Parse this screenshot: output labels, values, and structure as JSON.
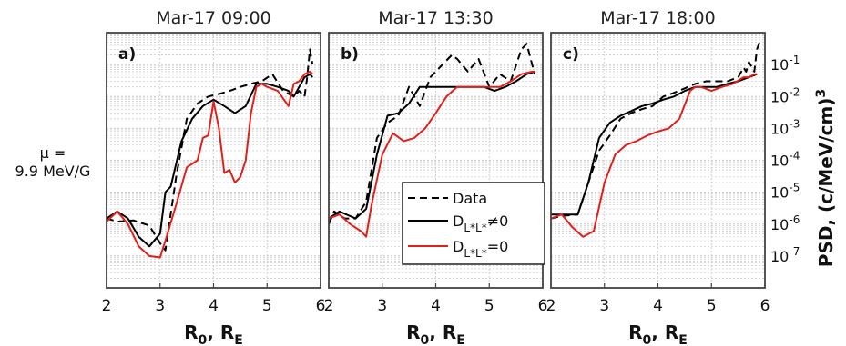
{
  "left_label": {
    "mu_line1": "μ =",
    "mu_line2": "9.9 MeV/G"
  },
  "x_axis": {
    "label_main": "R",
    "label_sub": "0",
    "label_rest": ", R",
    "label_sub2": "E",
    "ticks": [
      "2",
      "3",
      "4",
      "5",
      "6"
    ],
    "range": [
      2,
      6
    ]
  },
  "y_axis": {
    "label_main": "PSD, (c/MeV/cm)",
    "label_sup": "3",
    "scale": "log",
    "range": [
      1e-08,
      1.0
    ],
    "ticks": [
      {
        "base": "10",
        "exp": "-1"
      },
      {
        "base": "10",
        "exp": "-2"
      },
      {
        "base": "10",
        "exp": "-3"
      },
      {
        "base": "10",
        "exp": "-4"
      },
      {
        "base": "10",
        "exp": "-5"
      },
      {
        "base": "10",
        "exp": "-6"
      },
      {
        "base": "10",
        "exp": "-7"
      }
    ]
  },
  "legend": {
    "items": [
      {
        "label": "Data",
        "sub": "",
        "tail": "",
        "color": "#000000",
        "dash": true
      },
      {
        "label": "D",
        "sub": "L*L*",
        "tail": "≠0",
        "color": "#000000",
        "dash": false
      },
      {
        "label": "D",
        "sub": "L*L*",
        "tail": "=0",
        "color": "#e0201b",
        "dash": false
      }
    ]
  },
  "panels": [
    {
      "title": "Mar-17 09:00",
      "letter": "a)"
    },
    {
      "title": "Mar-17 13:30",
      "letter": "b)"
    },
    {
      "title": "Mar-17 18:00",
      "letter": "c)"
    }
  ],
  "colors": {
    "data": "#000000",
    "model_nonzero": "#000000",
    "model_zero": "#e0201b",
    "grid": "#cfcfcf"
  },
  "chart_data": [
    {
      "type": "line",
      "title": "Mar-17 09:00",
      "xlim": [
        2,
        6
      ],
      "ylim": [
        1e-08,
        1
      ],
      "yscale": "log",
      "grid": true,
      "series": [
        {
          "name": "Data",
          "style": "dashed",
          "x": [
            2.0,
            2.2,
            2.5,
            2.8,
            3.0,
            3.1,
            3.3,
            3.5,
            3.7,
            3.9,
            4.1,
            4.3,
            4.5,
            4.7,
            4.9,
            5.1,
            5.3,
            5.5,
            5.6,
            5.7,
            5.75,
            5.8,
            5.85
          ],
          "y": [
            1.5e-06,
            1.2e-06,
            1.3e-06,
            9e-07,
            2.5e-07,
            1.5e-07,
            3e-05,
            0.002,
            0.006,
            0.01,
            0.012,
            0.015,
            0.02,
            0.025,
            0.03,
            0.05,
            0.015,
            0.01,
            0.015,
            0.01,
            0.04,
            0.3,
            0.1
          ]
        },
        {
          "name": "D L*L* ≠0",
          "style": "solid",
          "x": [
            2.0,
            2.2,
            2.4,
            2.6,
            2.8,
            3.0,
            3.1,
            3.2,
            3.4,
            3.6,
            3.8,
            4.0,
            4.2,
            4.4,
            4.6,
            4.8,
            5.0,
            5.2,
            5.4,
            5.5,
            5.6,
            5.7,
            5.8,
            5.85
          ],
          "y": [
            1.5e-06,
            2.5e-06,
            1.5e-06,
            4e-07,
            2e-07,
            5e-07,
            1e-05,
            1.5e-05,
            0.0004,
            0.002,
            0.005,
            0.008,
            0.005,
            0.003,
            0.005,
            0.025,
            0.025,
            0.02,
            0.015,
            0.01,
            0.02,
            0.04,
            0.05,
            0.04
          ]
        },
        {
          "name": "D L*L* =0",
          "style": "solid",
          "x": [
            2.0,
            2.2,
            2.4,
            2.6,
            2.8,
            3.0,
            3.1,
            3.3,
            3.5,
            3.7,
            3.8,
            3.9,
            4.0,
            4.1,
            4.2,
            4.3,
            4.4,
            4.5,
            4.6,
            4.7,
            4.8,
            4.9,
            5.0,
            5.2,
            5.4,
            5.5,
            5.6,
            5.7,
            5.8,
            5.85
          ],
          "y": [
            1.2e-06,
            2.5e-06,
            1e-06,
            2e-07,
            1e-07,
            9e-08,
            3e-07,
            4e-06,
            6e-05,
            0.0001,
            0.0005,
            0.0006,
            0.007,
            0.001,
            4e-05,
            5e-05,
            2e-05,
            3e-05,
            0.0001,
            0.003,
            0.02,
            0.025,
            0.02,
            0.015,
            0.005,
            0.025,
            0.03,
            0.05,
            0.06,
            0.05
          ]
        }
      ]
    },
    {
      "type": "line",
      "title": "Mar-17 13:30",
      "xlim": [
        2,
        6
      ],
      "ylim": [
        1e-08,
        1
      ],
      "yscale": "log",
      "grid": true,
      "series": [
        {
          "name": "Data",
          "style": "dashed",
          "x": [
            2.0,
            2.1,
            2.3,
            2.5,
            2.7,
            2.9,
            3.1,
            3.3,
            3.5,
            3.7,
            3.9,
            4.1,
            4.3,
            4.4,
            4.6,
            4.8,
            5.0,
            5.2,
            5.4,
            5.6,
            5.7,
            5.8,
            5.85
          ],
          "y": [
            1e-06,
            2.5e-06,
            1.5e-06,
            1.5e-06,
            5e-06,
            0.0005,
            0.0015,
            0.0025,
            0.02,
            0.005,
            0.04,
            0.09,
            0.2,
            0.15,
            0.06,
            0.15,
            0.02,
            0.05,
            0.03,
            0.3,
            0.45,
            0.1,
            0.05
          ]
        },
        {
          "name": "D L*L* ≠0",
          "style": "solid",
          "x": [
            2.0,
            2.2,
            2.5,
            2.7,
            2.9,
            3.1,
            3.3,
            3.5,
            3.7,
            3.9,
            4.1,
            4.3,
            4.5,
            4.7,
            4.9,
            5.1,
            5.3,
            5.5,
            5.7,
            5.85
          ],
          "y": [
            1.5e-06,
            2.5e-06,
            1.5e-06,
            3e-06,
            0.00015,
            0.0025,
            0.003,
            0.006,
            0.02,
            0.02,
            0.02,
            0.02,
            0.02,
            0.02,
            0.02,
            0.015,
            0.02,
            0.03,
            0.05,
            0.06
          ]
        },
        {
          "name": "D L*L* =0",
          "style": "solid",
          "x": [
            2.0,
            2.2,
            2.4,
            2.6,
            2.7,
            2.8,
            3.0,
            3.2,
            3.4,
            3.6,
            3.8,
            4.0,
            4.2,
            4.4,
            4.6,
            4.8,
            5.0,
            5.2,
            5.4,
            5.6,
            5.8,
            5.85
          ],
          "y": [
            1.5e-06,
            2e-06,
            1e-06,
            6e-07,
            4e-07,
            4e-06,
            0.00015,
            0.0007,
            0.0004,
            0.0005,
            0.001,
            0.003,
            0.01,
            0.02,
            0.02,
            0.02,
            0.02,
            0.02,
            0.03,
            0.05,
            0.06,
            0.06
          ]
        }
      ]
    },
    {
      "type": "line",
      "title": "Mar-17 18:00",
      "xlim": [
        2,
        6
      ],
      "ylim": [
        1e-08,
        1
      ],
      "yscale": "log",
      "grid": true,
      "series": [
        {
          "name": "Data",
          "style": "dashed",
          "x": [
            2.0,
            2.2,
            2.5,
            2.7,
            2.9,
            3.1,
            3.3,
            3.5,
            3.7,
            3.9,
            4.1,
            4.3,
            4.5,
            4.7,
            4.9,
            5.1,
            5.3,
            5.5,
            5.6,
            5.65,
            5.7,
            5.8,
            5.85,
            5.9
          ],
          "y": [
            1.5e-06,
            1.8e-06,
            2e-06,
            2e-05,
            0.0002,
            0.0006,
            0.002,
            0.003,
            0.004,
            0.005,
            0.01,
            0.013,
            0.018,
            0.025,
            0.03,
            0.03,
            0.03,
            0.04,
            0.08,
            0.06,
            0.12,
            0.06,
            0.3,
            0.5
          ]
        },
        {
          "name": "D L*L* ≠0",
          "style": "solid",
          "x": [
            2.0,
            2.3,
            2.5,
            2.7,
            2.9,
            3.1,
            3.3,
            3.5,
            3.7,
            3.9,
            4.1,
            4.3,
            4.5,
            4.7,
            4.9,
            5.1,
            5.3,
            5.5,
            5.7,
            5.85
          ],
          "y": [
            2e-06,
            2e-06,
            2e-06,
            2e-05,
            0.0005,
            0.0015,
            0.0025,
            0.0035,
            0.005,
            0.006,
            0.008,
            0.01,
            0.015,
            0.02,
            0.02,
            0.02,
            0.025,
            0.03,
            0.04,
            0.05
          ]
        },
        {
          "name": "D L*L* =0",
          "style": "solid",
          "x": [
            2.0,
            2.2,
            2.4,
            2.6,
            2.8,
            3.0,
            3.2,
            3.4,
            3.6,
            3.8,
            4.0,
            4.2,
            4.4,
            4.6,
            4.7,
            4.8,
            5.0,
            5.2,
            5.4,
            5.6,
            5.7,
            5.8,
            5.85
          ],
          "y": [
            1.5e-06,
            2e-06,
            8e-07,
            4e-07,
            6e-07,
            2e-05,
            0.00015,
            0.0003,
            0.0004,
            0.0006,
            0.0008,
            0.001,
            0.002,
            0.015,
            0.02,
            0.02,
            0.015,
            0.02,
            0.025,
            0.04,
            0.04,
            0.05,
            0.05
          ]
        }
      ]
    }
  ]
}
